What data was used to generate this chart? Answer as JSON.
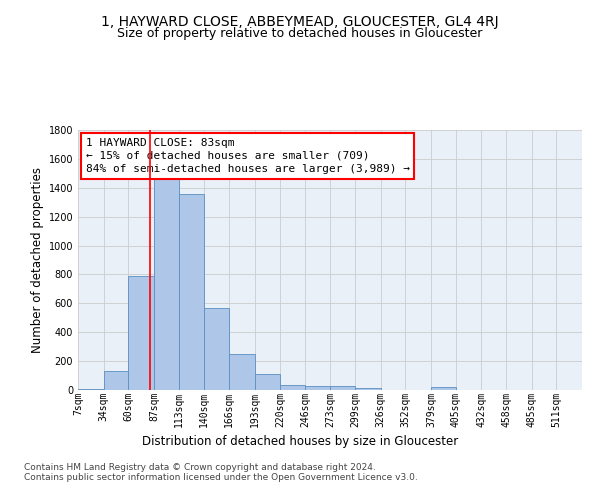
{
  "title": "1, HAYWARD CLOSE, ABBEYMEAD, GLOUCESTER, GL4 4RJ",
  "subtitle": "Size of property relative to detached houses in Gloucester",
  "xlabel": "Distribution of detached houses by size in Gloucester",
  "ylabel": "Number of detached properties",
  "bar_color": "#aec6e8",
  "bar_edge_color": "#5a8fc2",
  "background_color": "#eaf0f8",
  "grid_color": "#cccccc",
  "vline_x": 83,
  "vline_color": "red",
  "annotation_text": "1 HAYWARD CLOSE: 83sqm\n← 15% of detached houses are smaller (709)\n84% of semi-detached houses are larger (3,989) →",
  "annotation_box_color": "white",
  "annotation_box_edgecolor": "red",
  "footer_text": "Contains HM Land Registry data © Crown copyright and database right 2024.\nContains public sector information licensed under the Open Government Licence v3.0.",
  "bin_edges": [
    7,
    34,
    60,
    87,
    113,
    140,
    166,
    193,
    220,
    246,
    273,
    299,
    326,
    352,
    379,
    405,
    432,
    458,
    485,
    511,
    538
  ],
  "bin_heights": [
    10,
    130,
    790,
    1460,
    1360,
    565,
    250,
    110,
    35,
    30,
    30,
    15,
    0,
    0,
    20,
    0,
    0,
    0,
    0,
    0
  ],
  "ylim": [
    0,
    1800
  ],
  "yticks": [
    0,
    200,
    400,
    600,
    800,
    1000,
    1200,
    1400,
    1600,
    1800
  ],
  "title_fontsize": 10,
  "subtitle_fontsize": 9,
  "axis_label_fontsize": 8.5,
  "tick_fontsize": 7,
  "annotation_fontsize": 8,
  "footer_fontsize": 6.5
}
